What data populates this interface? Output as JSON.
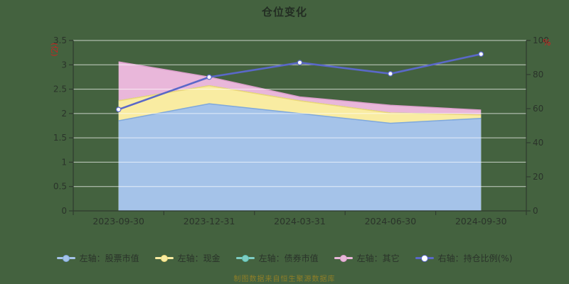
{
  "title": "仓位变化",
  "watermark": "制图数据来自恒生聚源数据库",
  "colors": {
    "background": "#44623F",
    "grid": "#FFFFFF",
    "axis": "#2F3A2F",
    "text": "#2A332A",
    "title": "#232D23",
    "axis_unit": "#CC2222",
    "watermark": "#8D7E28",
    "legend_text": "#2A332A"
  },
  "axes": {
    "left": {
      "unit": "(亿)",
      "ticks": [
        0,
        0.5,
        1,
        1.5,
        2,
        2.5,
        3,
        3.5
      ],
      "labels": [
        "0",
        "0.5",
        "1",
        "1.5",
        "2",
        "2.5",
        "3",
        "3.5"
      ]
    },
    "right": {
      "unit": "%",
      "ticks": [
        0,
        20,
        40,
        60,
        80,
        100
      ],
      "labels": [
        "0",
        "20",
        "40",
        "60",
        "80",
        "100"
      ]
    }
  },
  "chart_data": {
    "type": "area",
    "title": "仓位变化",
    "categories": [
      "2023-09-30",
      "2023-12-31",
      "2024-03-31",
      "2024-06-30",
      "2024-09-30"
    ],
    "ylim_left": [
      0,
      3.5
    ],
    "ylim_right": [
      0,
      100
    ],
    "grid": true,
    "legend_position": "bottom",
    "series": [
      {
        "key": "stock",
        "name": "左轴：股票市值",
        "type": "area",
        "stack": true,
        "axis": "left",
        "color": "#A5C3E9",
        "edge": "#7FA8DC",
        "values": [
          1.85,
          2.2,
          2.0,
          1.8,
          1.9
        ]
      },
      {
        "key": "cash",
        "name": "左轴：现金",
        "type": "area",
        "stack": true,
        "axis": "left",
        "color": "#F9ECA2",
        "edge": "#EDD878",
        "values": [
          0.41,
          0.37,
          0.26,
          0.21,
          0.07
        ]
      },
      {
        "key": "bond",
        "name": "左轴：债券市值",
        "type": "area",
        "stack": true,
        "axis": "left",
        "color": "#7ECEC4",
        "edge": "#5BBFB2",
        "values": [
          0,
          0,
          0,
          0,
          0
        ]
      },
      {
        "key": "other",
        "name": "左轴：其它",
        "type": "area",
        "stack": true,
        "axis": "left",
        "color": "#E9B7DA",
        "edge": "#DC9FCC",
        "values": [
          0.8,
          0.18,
          0.08,
          0.16,
          0.1
        ]
      },
      {
        "key": "position-ratio",
        "name": "右轴：持仓比例(%)",
        "type": "line",
        "stack": false,
        "axis": "right",
        "color": "#5A68C8",
        "marker": "#FFFFFF",
        "values": [
          59.5,
          78.5,
          87,
          80.5,
          92
        ]
      }
    ]
  }
}
